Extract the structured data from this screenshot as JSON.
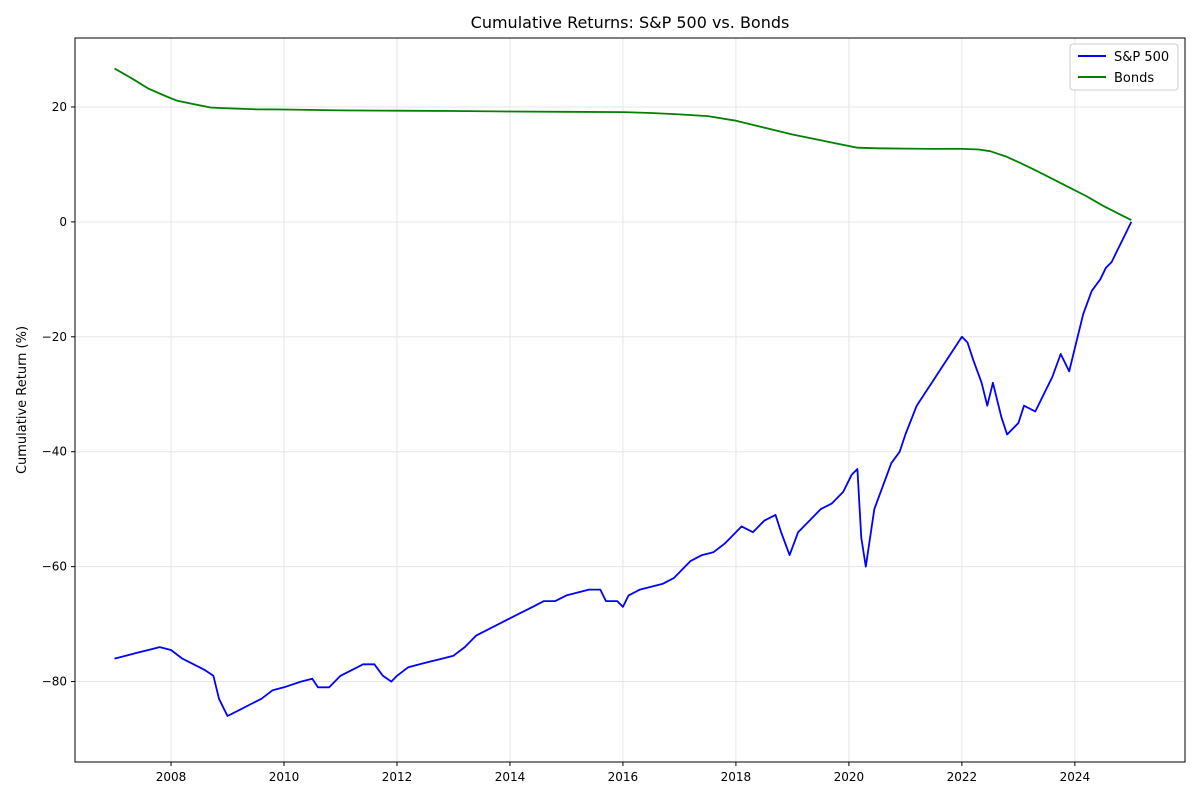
{
  "chart_data": {
    "type": "line",
    "title": "Cumulative Returns: S&P 500 vs. Bonds",
    "xlabel": "",
    "ylabel": "Cumulative Return (%)",
    "xlim": [
      2006.3,
      2025.95
    ],
    "ylim": [
      -94,
      32
    ],
    "x_ticks": [
      2008,
      2010,
      2012,
      2014,
      2016,
      2018,
      2020,
      2022,
      2024
    ],
    "y_ticks": [
      -80,
      -60,
      -40,
      -20,
      0,
      20
    ],
    "grid": true,
    "legend_position": "top-right",
    "series": [
      {
        "name": "S&P 500",
        "color": "#0000ff",
        "x": [
          2007.0,
          2007.2,
          2007.4,
          2007.6,
          2007.8,
          2008.0,
          2008.2,
          2008.4,
          2008.6,
          2008.75,
          2008.85,
          2009.0,
          2009.2,
          2009.4,
          2009.6,
          2009.8,
          2010.0,
          2010.3,
          2010.5,
          2010.6,
          2010.8,
          2011.0,
          2011.2,
          2011.4,
          2011.6,
          2011.75,
          2011.9,
          2012.0,
          2012.2,
          2012.4,
          2012.6,
          2012.8,
          2013.0,
          2013.2,
          2013.4,
          2013.6,
          2013.8,
          2014.0,
          2014.2,
          2014.4,
          2014.6,
          2014.8,
          2015.0,
          2015.2,
          2015.4,
          2015.6,
          2015.7,
          2015.9,
          2016.0,
          2016.1,
          2016.3,
          2016.5,
          2016.7,
          2016.9,
          2017.0,
          2017.2,
          2017.4,
          2017.6,
          2017.8,
          2018.0,
          2018.1,
          2018.3,
          2018.5,
          2018.7,
          2018.8,
          2018.95,
          2019.1,
          2019.3,
          2019.5,
          2019.7,
          2019.9,
          2020.05,
          2020.15,
          2020.22,
          2020.3,
          2020.45,
          2020.6,
          2020.75,
          2020.9,
          2021.0,
          2021.2,
          2021.4,
          2021.6,
          2021.8,
          2022.0,
          2022.1,
          2022.2,
          2022.35,
          2022.45,
          2022.55,
          2022.7,
          2022.8,
          2023.0,
          2023.1,
          2023.3,
          2023.5,
          2023.6,
          2023.75,
          2023.9,
          2024.0,
          2024.15,
          2024.3,
          2024.45,
          2024.55,
          2024.65,
          2024.75,
          2024.85,
          2024.95,
          2025.0
        ],
        "y": [
          -76,
          -75.5,
          -75,
          -74.5,
          -74,
          -74.5,
          -76,
          -77,
          -78,
          -79,
          -83,
          -86,
          -85,
          -84,
          -83,
          -81.5,
          -81,
          -80,
          -79.5,
          -81,
          -81,
          -79,
          -78,
          -77,
          -77,
          -79,
          -80,
          -79,
          -77.5,
          -77,
          -76.5,
          -76,
          -75.5,
          -74,
          -72,
          -71,
          -70,
          -69,
          -68,
          -67,
          -66,
          -66,
          -65,
          -64.5,
          -64,
          -64,
          -66,
          -66,
          -67,
          -65,
          -64,
          -63.5,
          -63,
          -62,
          -61,
          -59,
          -58,
          -57.5,
          -56,
          -54,
          -53,
          -54,
          -52,
          -51,
          -54,
          -58,
          -54,
          -52,
          -50,
          -49,
          -47,
          -44,
          -43,
          -55,
          -60,
          -50,
          -46,
          -42,
          -40,
          -37,
          -32,
          -29,
          -26,
          -23,
          -20,
          -21,
          -24,
          -28,
          -32,
          -28,
          -34,
          -37,
          -35,
          -32,
          -33,
          -29,
          -27,
          -23,
          -26,
          -22,
          -16,
          -12,
          -10,
          -8,
          -7,
          -5,
          -3,
          -1,
          0
        ]
      },
      {
        "name": "Bonds",
        "color": "#008000",
        "x": [
          2007.0,
          2007.3,
          2007.6,
          2007.9,
          2008.1,
          2008.4,
          2008.7,
          2008.9,
          2009.5,
          2010.0,
          2011.0,
          2012.0,
          2013.0,
          2014.0,
          2015.0,
          2016.0,
          2016.5,
          2017.0,
          2017.5,
          2018.0,
          2018.5,
          2019.0,
          2019.5,
          2019.8,
          2020.0,
          2020.15,
          2020.5,
          2021.0,
          2021.5,
          2022.0,
          2022.3,
          2022.5,
          2022.8,
          2023.0,
          2023.3,
          2023.6,
          2023.9,
          2024.2,
          2024.5,
          2024.8,
          2025.0
        ],
        "y": [
          26.7,
          25,
          23.2,
          21.9,
          21.1,
          20.5,
          19.9,
          19.8,
          19.6,
          19.55,
          19.4,
          19.35,
          19.3,
          19.2,
          19.15,
          19.1,
          18.95,
          18.7,
          18.4,
          17.6,
          16.4,
          15.2,
          14.2,
          13.6,
          13.2,
          12.9,
          12.8,
          12.75,
          12.7,
          12.7,
          12.6,
          12.3,
          11.3,
          10.4,
          9.0,
          7.5,
          6.0,
          4.5,
          2.8,
          1.3,
          0.3
        ]
      }
    ]
  }
}
